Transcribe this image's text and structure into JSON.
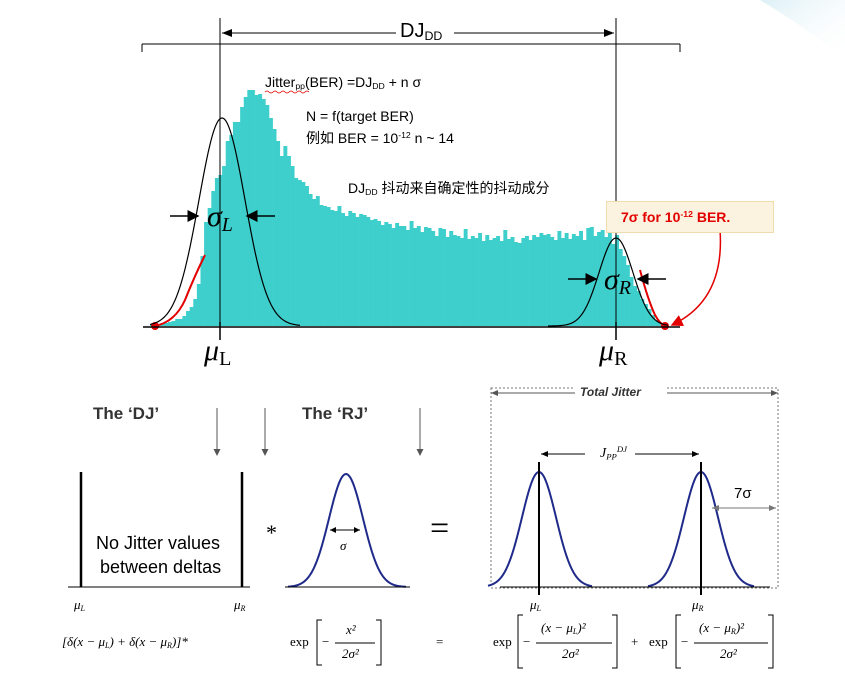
{
  "top": {
    "dj_label": "DJ",
    "dj_sub": "DD",
    "formula": {
      "a": "Jitter",
      "a_sub": "pp",
      "b": "(BER) =DJ",
      "b_sub": "DD",
      "c": " + n σ"
    },
    "n_line": "N = f(target BER)",
    "example": {
      "a": "例如 BER = 10",
      "exp": "-12",
      "b": "  n ~ 14"
    },
    "dd_desc": {
      "a": "DJ",
      "sub": "DD",
      "b": " 抖动来自确定性的抖动成分"
    },
    "seven_sigma": {
      "a": "7σ for 10",
      "exp": "-12",
      "b": " BER."
    },
    "sigma_l": {
      "a": "σ",
      "sub": "L"
    },
    "sigma_r": {
      "a": "σ",
      "sub": "R"
    },
    "mu_l": {
      "a": "μ",
      "sub": "L"
    },
    "mu_r": {
      "a": "μ",
      "sub": "R"
    },
    "histogram": {
      "fill_color": "#3ecfcc",
      "counts": [
        1,
        2,
        2,
        3,
        3,
        4,
        5,
        7,
        7,
        10,
        15,
        19,
        27,
        42,
        70,
        104,
        118,
        135,
        148,
        151,
        160,
        185,
        191,
        204,
        204,
        219,
        229,
        236,
        236,
        231,
        232,
        227,
        221,
        208,
        197,
        185,
        170,
        180,
        170,
        160,
        148,
        146,
        144,
        140,
        132,
        127,
        130,
        121,
        120,
        119,
        116,
        115,
        120,
        113,
        110,
        115,
        113,
        109,
        112,
        111,
        109,
        106,
        107,
        105,
        101,
        104,
        102,
        98,
        103,
        100,
        100,
        96,
        105,
        98,
        100,
        94,
        99,
        98,
        95,
        90,
        98,
        97,
        89,
        95,
        91,
        90,
        88,
        97,
        87,
        90,
        88,
        93,
        85,
        91,
        86,
        88,
        90,
        85,
        96,
        87,
        89,
        84,
        83,
        88,
        90,
        86,
        91,
        89,
        93,
        91,
        92,
        89,
        86,
        95,
        88,
        93,
        87,
        92,
        90,
        95,
        86,
        98,
        99,
        90,
        94,
        96,
        89,
        100,
        82,
        91,
        77,
        70,
        61,
        49,
        40,
        35,
        27,
        22,
        17,
        11,
        6,
        3
      ]
    },
    "gauss_l": {
      "mu": 0,
      "sigma": 1
    },
    "gauss_r": {
      "mu": 0,
      "sigma": 1
    }
  },
  "bottom": {
    "the_dj": "The ‘DJ’",
    "the_rj": "The ‘RJ’",
    "total_jitter": "Total Jitter",
    "no_jitter_1": "No Jitter values",
    "no_jitter_2": "between deltas",
    "star": "*",
    "equals": "=",
    "sigma_small": "σ",
    "jpp": {
      "a": "J",
      "sub": "PP",
      "sup": "DJ"
    },
    "seven_sigma": "7σ",
    "mu_l": {
      "a": "μ",
      "sub": "L"
    },
    "mu_r": {
      "a": "μ",
      "sub": "R"
    },
    "mu_l2": {
      "a": "μ",
      "sub": "L"
    },
    "mu_r2": {
      "a": "μ",
      "sub": "R"
    },
    "eq_delta": "[δ(x − μ",
    "eq_delta_sub_l": "L",
    "eq_delta_mid": ")    +    δ(x − μ",
    "eq_delta_sub_r": "R",
    "eq_delta_end": ")]*",
    "exp_word": "exp",
    "frac_num_rj": "x²",
    "frac_den": "2σ²",
    "eq_equals": "=",
    "frac_num_l": "(x − μ",
    "frac_num_l_sub": "L",
    "frac_num_l_end": ")²",
    "plus": "+",
    "frac_num_r": "(x − μ",
    "frac_num_r_sub": "R",
    "frac_num_r_end": ")²",
    "minus": "−",
    "curve_color": "#1f2a8a"
  }
}
